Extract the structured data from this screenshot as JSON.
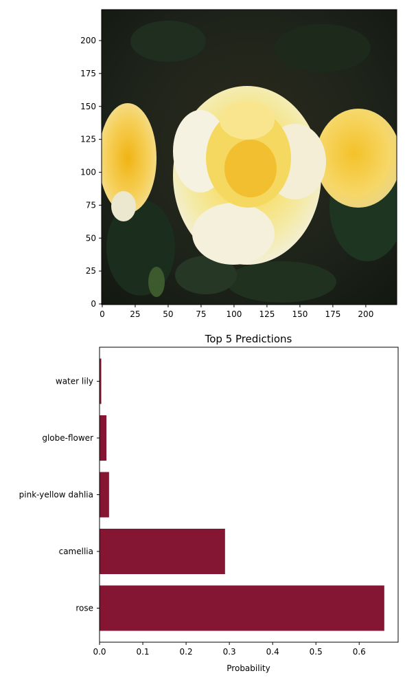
{
  "image_panel": {
    "subject": "yellow roses photograph",
    "xticks": [
      "0",
      "25",
      "50",
      "75",
      "100",
      "125",
      "150",
      "175",
      "200"
    ],
    "yticks": [
      "0",
      "25",
      "50",
      "75",
      "100",
      "125",
      "150",
      "175",
      "200"
    ],
    "xlim": [
      -0.5,
      223.5
    ],
    "ylim": [
      223.5,
      -0.5
    ]
  },
  "chart_data": {
    "type": "bar",
    "orientation": "horizontal",
    "title": "Top 5 Predictions",
    "xlabel": "Probability",
    "ylabel": "",
    "categories": [
      "rose",
      "camellia",
      "pink-yellow dahlia",
      "globe-flower",
      "water lily"
    ],
    "values": [
      0.658,
      0.29,
      0.022,
      0.016,
      0.004
    ],
    "xlim": [
      0,
      0.69
    ],
    "xticks": [
      "0.0",
      "0.1",
      "0.2",
      "0.3",
      "0.4",
      "0.5",
      "0.6"
    ],
    "bar_color": "#841634",
    "grid": false
  }
}
